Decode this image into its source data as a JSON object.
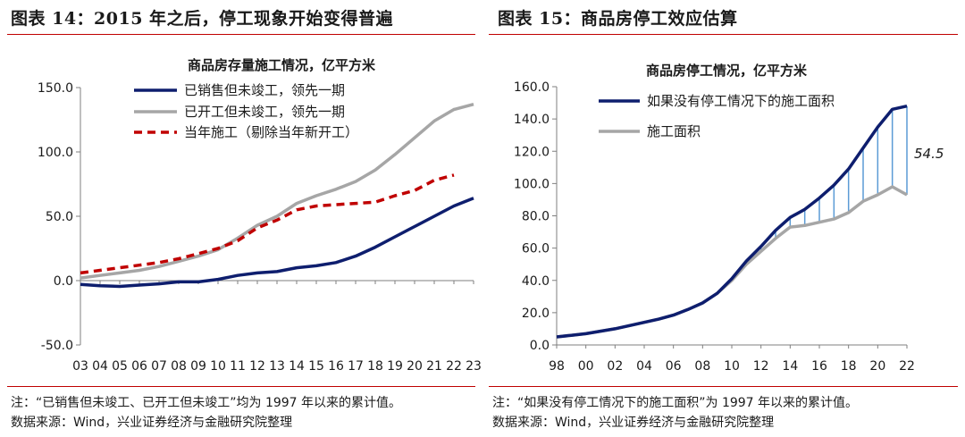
{
  "left_panel": {
    "heading": "图表 14：2015 年之后，停工现象开始变得普遍",
    "note": "注：“已销售但未竣工、已开工但未竣工”均为 1997 年以来的累计值。",
    "source": "数据来源：Wind，兴业证券经济与金融研究院整理"
  },
  "right_panel": {
    "heading": "图表 15：商品房停工效应估算",
    "note": "注：“如果没有停工情况下的施工面积”为 1997 年以来的累计值。",
    "source": "数据来源：Wind，兴业证券经济与金融研究院整理"
  },
  "colors": {
    "navy": "#0e1e6e",
    "gray": "#a6a6a6",
    "red": "#c00000",
    "blue_fill": "#5b9bd5"
  },
  "chart_data": [
    {
      "type": "line",
      "title": "商品房存量施工情况，亿平方米",
      "xlabel": "",
      "ylabel": "",
      "ylim": [
        -50,
        150
      ],
      "yticks": [
        "150.0",
        "100.0",
        "50.0",
        "0.0",
        "-50.0"
      ],
      "ytick_values": [
        150,
        100,
        50,
        0,
        -50
      ],
      "x": [
        3,
        4,
        5,
        6,
        7,
        8,
        9,
        10,
        11,
        12,
        13,
        14,
        15,
        16,
        17,
        18,
        19,
        20,
        21,
        22,
        23
      ],
      "xtick_labels": [
        "03",
        "04",
        "05",
        "06",
        "07",
        "08",
        "09",
        "10",
        "11",
        "12",
        "13",
        "14",
        "15",
        "16",
        "17",
        "18",
        "19",
        "20",
        "21",
        "22",
        "23"
      ],
      "grid": false,
      "legend_position": "top-left",
      "series": [
        {
          "name": "已销售但未竣工，领先一期",
          "color": "#0e1e6e",
          "dash": false,
          "x": [
            3,
            4,
            5,
            6,
            7,
            8,
            9,
            10,
            11,
            12,
            13,
            14,
            15,
            16,
            17,
            18,
            19,
            20,
            21,
            22,
            23
          ],
          "values": [
            -3,
            -4,
            -4.5,
            -3.5,
            -2.5,
            -1,
            -1,
            1,
            4,
            6,
            7,
            10,
            11.5,
            14,
            19,
            26,
            34,
            42,
            50,
            58,
            64
          ]
        },
        {
          "name": "已开工但未竣工，领先一期",
          "color": "#a6a6a6",
          "dash": false,
          "x": [
            3,
            4,
            5,
            6,
            7,
            8,
            9,
            10,
            11,
            12,
            13,
            14,
            15,
            16,
            17,
            18,
            19,
            20,
            21,
            22,
            23
          ],
          "values": [
            2,
            4,
            6,
            8,
            11,
            15,
            19,
            24,
            33,
            43,
            50,
            60,
            66,
            71,
            77,
            86,
            98,
            111,
            124,
            133,
            137
          ]
        },
        {
          "name": "当年施工（剔除当年新开工）",
          "color": "#c00000",
          "dash": true,
          "x": [
            3,
            4,
            5,
            6,
            7,
            8,
            9,
            10,
            11,
            12,
            13,
            14,
            15,
            16,
            17,
            18,
            19,
            20,
            21,
            22
          ],
          "values": [
            6,
            8,
            10,
            12,
            14,
            17,
            21,
            25,
            31,
            41,
            47,
            55,
            58,
            59,
            60,
            61,
            66,
            70,
            78,
            82
          ]
        }
      ]
    },
    {
      "type": "line",
      "title": "商品房停工情况，亿平方米",
      "xlabel": "",
      "ylabel": "",
      "ylim": [
        0,
        160
      ],
      "yticks": [
        "160.0",
        "140.0",
        "120.0",
        "100.0",
        "80.0",
        "60.0",
        "40.0",
        "20.0",
        "0.0"
      ],
      "ytick_values": [
        160,
        140,
        120,
        100,
        80,
        60,
        40,
        20,
        0
      ],
      "x": [
        1998,
        1999,
        2000,
        2001,
        2002,
        2003,
        2004,
        2005,
        2006,
        2007,
        2008,
        2009,
        2010,
        2011,
        2012,
        2013,
        2014,
        2015,
        2016,
        2017,
        2018,
        2019,
        2020,
        2021,
        2022
      ],
      "xtick_values": [
        1998,
        2000,
        2002,
        2004,
        2006,
        2008,
        2010,
        2012,
        2014,
        2016,
        2018,
        2020,
        2022
      ],
      "xtick_labels": [
        "98",
        "00",
        "02",
        "04",
        "06",
        "08",
        "10",
        "12",
        "14",
        "16",
        "18",
        "20",
        "22"
      ],
      "grid": false,
      "legend_position": "top-left",
      "annotation": "54.5",
      "shaded_between": [
        "如果没有停工情况下的施工面积",
        "施工面积"
      ],
      "series": [
        {
          "name": "如果没有停工情况下的施工面积",
          "color": "#0e1e6e",
          "values": [
            5,
            6,
            7,
            8.5,
            10,
            12,
            14,
            16,
            18.5,
            22,
            26,
            32,
            41,
            52,
            61,
            71,
            79,
            84,
            91,
            99,
            109,
            122,
            135,
            146,
            148
          ]
        },
        {
          "name": "施工面积",
          "color": "#a6a6a6",
          "values": [
            5,
            6,
            7,
            8.5,
            10,
            12,
            14,
            16,
            18.5,
            22,
            26,
            32,
            40,
            50,
            58,
            66,
            73,
            74,
            76,
            78,
            82,
            89,
            93,
            98,
            93
          ]
        }
      ]
    }
  ]
}
